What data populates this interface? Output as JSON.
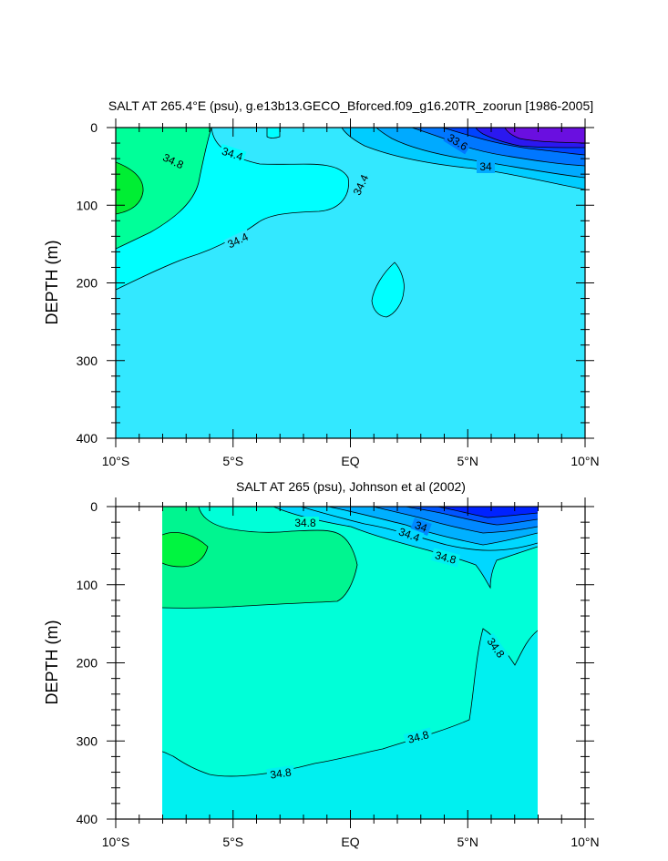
{
  "chart_data": [
    {
      "type": "contour",
      "title": "SALT AT 265.4°E (psu), g.e13b13.GECO_Bforced.f09_g16.20TR_zoorun [1986-2005]",
      "ylabel": "DEPTH (m)",
      "xlabel": "",
      "x_ticks": [
        "10°S",
        "5°S",
        "EQ",
        "5°N",
        "10°N"
      ],
      "x_range": [
        -10,
        10
      ],
      "y_ticks": [
        "0",
        "100",
        "200",
        "300",
        "400"
      ],
      "y_range": [
        0,
        400
      ],
      "y_reversed": true,
      "contour_labels": [
        "34.8",
        "34.4",
        "34.4",
        "34.4",
        "33.6",
        "34"
      ],
      "colors": {
        "s33_2": "#6a0fe0",
        "s33_4": "#2b18f0",
        "s33_6": "#0044ff",
        "s33_8": "#0077ff",
        "s34_0": "#00aaff",
        "s34_2": "#00ccff",
        "s34_4": "#33e8ff",
        "s34_6": "#00ffff",
        "s34_8": "#00ff99",
        "s35_0": "#00ee33"
      }
    },
    {
      "type": "contour",
      "title": "SALT AT 265 (psu), Johnson et al (2002)",
      "ylabel": "DEPTH (m)",
      "xlabel": "",
      "x_ticks": [
        "10°S",
        "5°S",
        "EQ",
        "5°N",
        "10°N"
      ],
      "x_range": [
        -10,
        10
      ],
      "y_ticks": [
        "0",
        "100",
        "200",
        "300",
        "400"
      ],
      "y_range": [
        0,
        400
      ],
      "y_reversed": true,
      "contour_labels": [
        "34.8",
        "34",
        "34.4",
        "34.8",
        "34.8",
        "34.8",
        "34.8"
      ],
      "colors": {
        "s33_6": "#0022ff",
        "s33_8": "#0055ff",
        "s34_0": "#0088ff",
        "s34_2": "#00b0ff",
        "s34_4": "#00d8ff",
        "s34_6": "#00f0f0",
        "s34_8": "#00ffd8",
        "s35_0": "#00f590",
        "s35_2": "#00f540"
      }
    }
  ]
}
